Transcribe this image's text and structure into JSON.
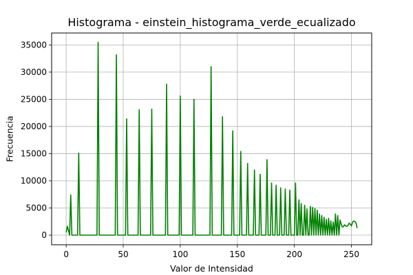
{
  "chart_data": {
    "type": "line",
    "title": "Histograma - einstein_histograma_verde_ecualizado",
    "xlabel": "Valor de Intensidad",
    "ylabel": "Frecuencia",
    "xlim": [
      -12.75,
      267.75
    ],
    "ylim": [
      -1770,
      37200
    ],
    "xticks": [
      0,
      50,
      100,
      150,
      200,
      250
    ],
    "yticks": [
      0,
      5000,
      10000,
      15000,
      20000,
      25000,
      30000,
      35000
    ],
    "grid": true,
    "line_color": "#008000",
    "series": [
      {
        "peaks": [
          [
            0,
            500
          ],
          [
            1,
            1600
          ],
          [
            2,
            900
          ],
          [
            4,
            7400
          ],
          [
            11,
            15100
          ],
          [
            28,
            35500
          ],
          [
            44,
            33200
          ],
          [
            53,
            21400
          ],
          [
            64,
            23100
          ],
          [
            75,
            23200
          ],
          [
            88,
            27800
          ],
          [
            100,
            25600
          ],
          [
            112,
            25000
          ],
          [
            127,
            31000
          ],
          [
            137,
            21800
          ],
          [
            146,
            19200
          ],
          [
            153,
            15400
          ],
          [
            159,
            13200
          ],
          [
            165,
            12000
          ],
          [
            170,
            11200
          ],
          [
            176,
            13900
          ],
          [
            180,
            9600
          ],
          [
            184,
            9200
          ],
          [
            188,
            8700
          ],
          [
            192,
            8500
          ],
          [
            196,
            8300
          ],
          [
            201,
            9600
          ],
          [
            204,
            6500
          ],
          [
            206,
            5800
          ],
          [
            209,
            5500
          ],
          [
            211,
            4800
          ],
          [
            214,
            5300
          ],
          [
            216,
            5100
          ],
          [
            218,
            4900
          ],
          [
            220,
            4600
          ],
          [
            222,
            3900
          ],
          [
            224,
            3600
          ],
          [
            226,
            3300
          ],
          [
            228,
            2900
          ],
          [
            230,
            3100
          ],
          [
            232,
            2600
          ],
          [
            234,
            2400
          ],
          [
            236,
            3900
          ],
          [
            238,
            3600
          ],
          [
            240,
            2800
          ]
        ],
        "smooth_tail": [
          [
            241,
            2000
          ],
          [
            242,
            1500
          ],
          [
            243,
            1600
          ],
          [
            244,
            1900
          ],
          [
            245,
            1700
          ],
          [
            246,
            1600
          ],
          [
            247,
            1800
          ],
          [
            248,
            2200
          ],
          [
            249,
            2000
          ],
          [
            250,
            1700
          ],
          [
            251,
            2400
          ],
          [
            252,
            2600
          ],
          [
            253,
            2500
          ],
          [
            254,
            2200
          ],
          [
            255,
            1300
          ]
        ]
      }
    ]
  }
}
